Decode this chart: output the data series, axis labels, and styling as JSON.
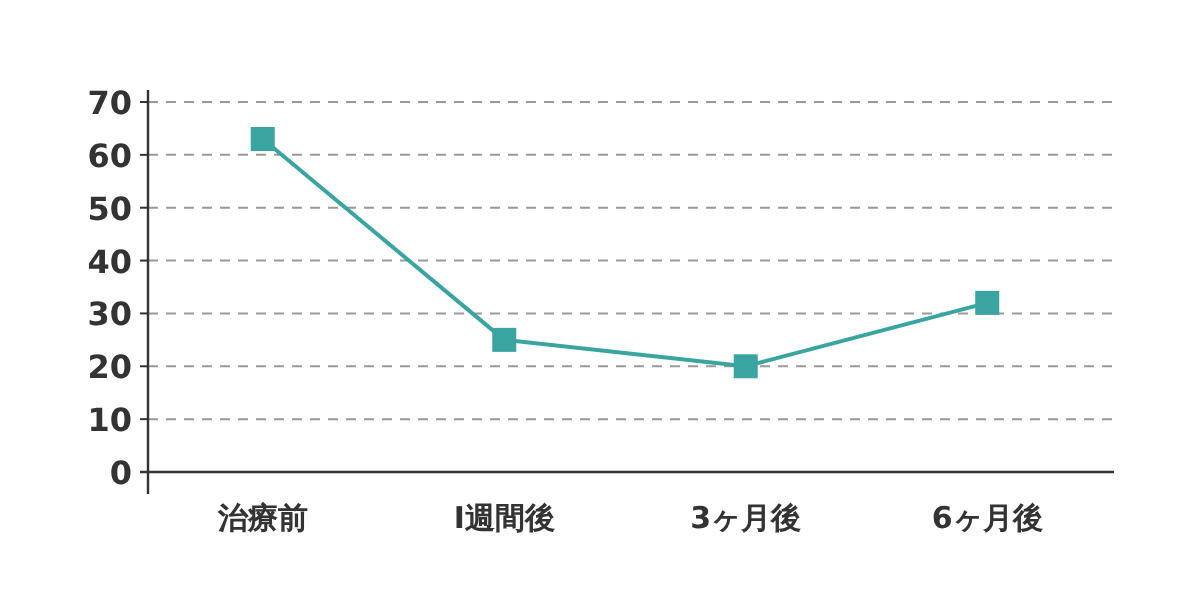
{
  "chart_data": {
    "type": "line",
    "categories": [
      "治療前",
      "Ⅰ週間後",
      "3ヶ月後",
      "6ヶ月後"
    ],
    "series": [
      {
        "color": "#3aa5a0",
        "values": [
          63,
          25,
          20,
          32
        ]
      }
    ],
    "ylim": [
      0,
      70
    ],
    "yticks": [
      0,
      10,
      20,
      30,
      40,
      50,
      60,
      70
    ],
    "grid": "y",
    "marker": "square",
    "line_style": "solid"
  }
}
